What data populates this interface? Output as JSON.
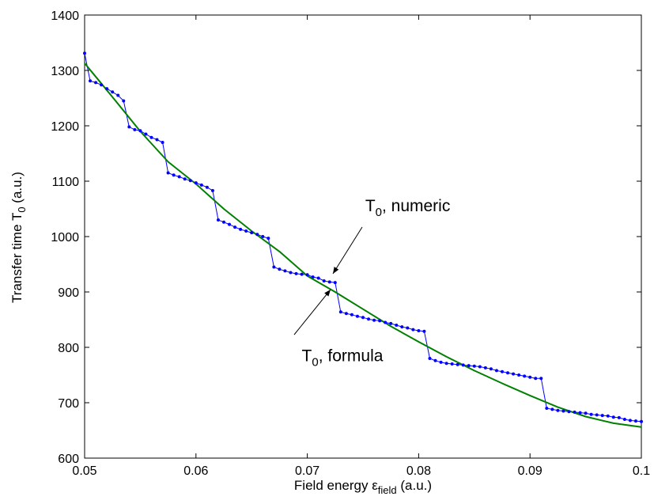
{
  "chart_data": {
    "type": "line",
    "title": "",
    "xlabel": {
      "main": "Field energy ",
      "symbol": "ε",
      "subscript": "field",
      "suffix": " (a.u.)"
    },
    "ylabel": {
      "main": "Transfer time T",
      "subscript": "0",
      "suffix": " (a.u.)"
    },
    "xlim": [
      0.05,
      0.1
    ],
    "ylim": [
      600,
      1400
    ],
    "xticks": [
      0.05,
      0.06,
      0.07,
      0.08,
      0.09,
      0.1
    ],
    "xtick_labels": [
      "0.05",
      "0.06",
      "0.07",
      "0.08",
      "0.09",
      "0.1"
    ],
    "yticks": [
      600,
      700,
      800,
      900,
      1000,
      1100,
      1200,
      1300,
      1400
    ],
    "ytick_labels": [
      "600",
      "700",
      "800",
      "900",
      "1000",
      "1100",
      "1200",
      "1300",
      "1400"
    ],
    "grid": false,
    "colors": {
      "numeric": "#0000ff",
      "formula": "#008000"
    },
    "series": [
      {
        "name": "T0, numeric",
        "x": [
          0.05,
          0.0505,
          0.051,
          0.0515,
          0.052,
          0.0525,
          0.053,
          0.0535,
          0.054,
          0.0545,
          0.055,
          0.0555,
          0.056,
          0.0565,
          0.057,
          0.0575,
          0.058,
          0.0585,
          0.059,
          0.0595,
          0.06,
          0.0605,
          0.061,
          0.0615,
          0.062,
          0.0625,
          0.063,
          0.0635,
          0.064,
          0.0645,
          0.065,
          0.0655,
          0.066,
          0.0665,
          0.067,
          0.0675,
          0.068,
          0.0685,
          0.069,
          0.0695,
          0.07,
          0.0705,
          0.071,
          0.0715,
          0.072,
          0.0725,
          0.073,
          0.0735,
          0.074,
          0.0745,
          0.075,
          0.0755,
          0.076,
          0.0765,
          0.077,
          0.0775,
          0.078,
          0.0785,
          0.079,
          0.0795,
          0.08,
          0.0805,
          0.081,
          0.0815,
          0.082,
          0.0825,
          0.083,
          0.0835,
          0.084,
          0.0845,
          0.085,
          0.0855,
          0.086,
          0.0865,
          0.087,
          0.0875,
          0.088,
          0.0885,
          0.089,
          0.0895,
          0.09,
          0.0905,
          0.091,
          0.0915,
          0.092,
          0.0925,
          0.093,
          0.0935,
          0.094,
          0.0945,
          0.095,
          0.0955,
          0.096,
          0.0965,
          0.097,
          0.0975,
          0.098,
          0.0985,
          0.099,
          0.0995,
          0.1
        ],
        "y": [
          1331,
          1281,
          1278,
          1274,
          1267,
          1261,
          1255,
          1245,
          1198,
          1193,
          1191,
          1185,
          1179,
          1175,
          1170,
          1115,
          1111,
          1108,
          1104,
          1101,
          1097,
          1093,
          1089,
          1083,
          1030,
          1026,
          1022,
          1017,
          1013,
          1010,
          1007,
          1004,
          1000,
          997,
          945,
          941,
          938,
          935,
          933,
          932,
          931,
          927,
          925,
          920,
          918,
          917,
          864,
          861,
          859,
          856,
          854,
          851,
          849,
          848,
          845,
          843,
          840,
          837,
          835,
          832,
          830,
          829,
          780,
          776,
          773,
          771,
          770,
          769,
          768,
          767,
          766,
          765,
          763,
          761,
          758,
          756,
          754,
          752,
          750,
          748,
          746,
          744,
          744,
          690,
          688,
          686,
          685,
          684,
          683,
          682,
          681,
          679,
          678,
          677,
          676,
          674,
          673,
          670,
          668,
          667,
          666
        ]
      },
      {
        "name": "T0, formula",
        "x": [
          0.05,
          0.0525,
          0.055,
          0.0575,
          0.06,
          0.0625,
          0.065,
          0.0675,
          0.07,
          0.0725,
          0.075,
          0.0775,
          0.08,
          0.0825,
          0.085,
          0.0875,
          0.09,
          0.0925,
          0.095,
          0.0975,
          0.1
        ],
        "y": [
          1313,
          1252,
          1190,
          1135,
          1095,
          1050,
          1010,
          973,
          929,
          900,
          869,
          838,
          810,
          783,
          758,
          735,
          713,
          692,
          675,
          663,
          656
        ]
      }
    ],
    "annotations": [
      {
        "id": "numeric",
        "text_main": "T",
        "text_sub": "0",
        "text_rest": ", numeric",
        "target": [
          0.0725,
          918
        ],
        "text_at": [
          0.0752,
          1046
        ]
      },
      {
        "id": "formula",
        "text_main": "T",
        "text_sub": "0",
        "text_rest": ", formula",
        "target": [
          0.0732,
          887
        ],
        "text_at": [
          0.0695,
          775
        ]
      }
    ]
  }
}
